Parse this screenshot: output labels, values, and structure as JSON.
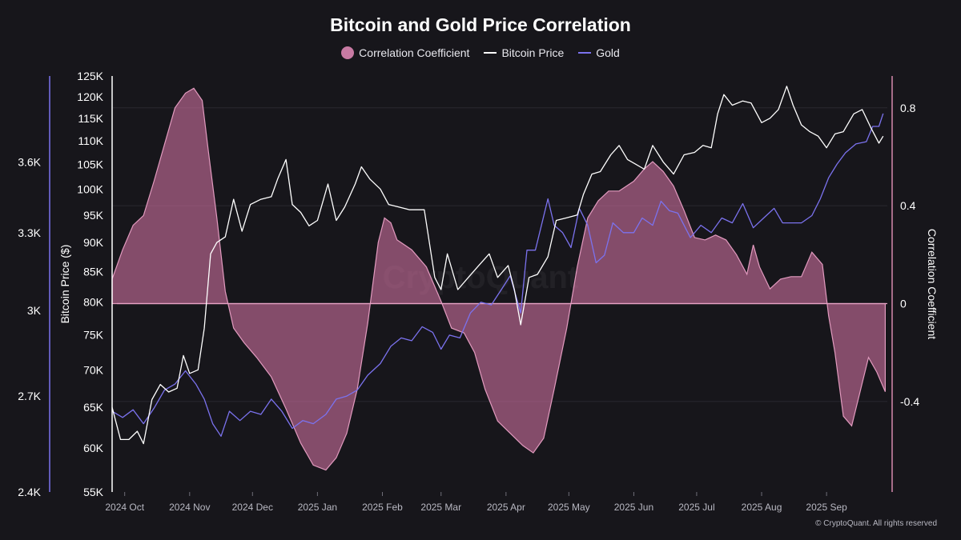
{
  "chart_data": {
    "type": "line",
    "title": "Bitcoin and Gold Price Correlation",
    "watermark": "CryptoQuant",
    "copyright": "© CryptoQuant. All rights reserved",
    "colors": {
      "background": "#17161b",
      "bitcoin": "#ffffff",
      "gold": "#7b72ee",
      "correlation": "#d58aae"
    },
    "x_ticks": [
      "2024 Oct",
      "2024 Nov",
      "2024 Dec",
      "2025 Jan",
      "2025 Feb",
      "2025 Mar",
      "2025 Apr",
      "2025 May",
      "2025 Jun",
      "2025 Jul",
      "2025 Aug",
      "2025 Sep"
    ],
    "x_range": [
      "2024-09-25",
      "2025-09-30"
    ],
    "axes": {
      "bitcoin": {
        "label": "Bitcoin Price ($)",
        "scale": "log",
        "range": [
          55000,
          125000
        ],
        "ticks": [
          "125K",
          "120K",
          "115K",
          "110K",
          "105K",
          "100K",
          "95K",
          "90K",
          "85K",
          "80K",
          "75K",
          "70K",
          "65K",
          "60K",
          "55K"
        ]
      },
      "gold": {
        "label": "",
        "scale": "log",
        "range": [
          2400,
          4000
        ],
        "ticks": [
          "3.6K",
          "3.3K",
          "3K",
          "2.7K",
          "2.4K"
        ]
      },
      "correlation": {
        "label": "Correlation Coefficient",
        "range": [
          -0.77,
          0.93
        ],
        "ticks": [
          "0.8",
          "0.4",
          "0",
          "-0.4"
        ]
      }
    },
    "grid": "horizontal",
    "legend": "top-center",
    "series": [
      {
        "name": "Correlation Coefficient",
        "type": "area",
        "points": [
          [
            "2024-09-25",
            0.1
          ],
          [
            "2024-09-30",
            0.22
          ],
          [
            "2024-10-05",
            0.32
          ],
          [
            "2024-10-10",
            0.36
          ],
          [
            "2024-10-15",
            0.5
          ],
          [
            "2024-10-20",
            0.65
          ],
          [
            "2024-10-25",
            0.8
          ],
          [
            "2024-10-30",
            0.86
          ],
          [
            "2024-11-03",
            0.88
          ],
          [
            "2024-11-07",
            0.83
          ],
          [
            "2024-11-10",
            0.62
          ],
          [
            "2024-11-14",
            0.35
          ],
          [
            "2024-11-18",
            0.05
          ],
          [
            "2024-11-22",
            -0.1
          ],
          [
            "2024-11-27",
            -0.16
          ],
          [
            "2024-12-03",
            -0.22
          ],
          [
            "2024-12-10",
            -0.3
          ],
          [
            "2024-12-17",
            -0.43
          ],
          [
            "2024-12-24",
            -0.57
          ],
          [
            "2024-12-30",
            -0.66
          ],
          [
            "2025-01-05",
            -0.68
          ],
          [
            "2025-01-10",
            -0.63
          ],
          [
            "2025-01-15",
            -0.53
          ],
          [
            "2025-01-20",
            -0.35
          ],
          [
            "2025-01-25",
            -0.08
          ],
          [
            "2025-01-30",
            0.25
          ],
          [
            "2025-02-02",
            0.35
          ],
          [
            "2025-02-05",
            0.33
          ],
          [
            "2025-02-08",
            0.26
          ],
          [
            "2025-02-15",
            0.22
          ],
          [
            "2025-02-22",
            0.15
          ],
          [
            "2025-03-01",
            0.01
          ],
          [
            "2025-03-06",
            -0.1
          ],
          [
            "2025-03-12",
            -0.12
          ],
          [
            "2025-03-17",
            -0.2
          ],
          [
            "2025-03-22",
            -0.35
          ],
          [
            "2025-03-28",
            -0.48
          ],
          [
            "2025-04-03",
            -0.53
          ],
          [
            "2025-04-09",
            -0.58
          ],
          [
            "2025-04-14",
            -0.61
          ],
          [
            "2025-04-19",
            -0.55
          ],
          [
            "2025-04-24",
            -0.35
          ],
          [
            "2025-04-30",
            -0.1
          ],
          [
            "2025-05-05",
            0.15
          ],
          [
            "2025-05-10",
            0.35
          ],
          [
            "2025-05-15",
            0.42
          ],
          [
            "2025-05-20",
            0.46
          ],
          [
            "2025-05-25",
            0.46
          ],
          [
            "2025-06-01",
            0.5
          ],
          [
            "2025-06-06",
            0.55
          ],
          [
            "2025-06-10",
            0.58
          ],
          [
            "2025-06-15",
            0.54
          ],
          [
            "2025-06-20",
            0.48
          ],
          [
            "2025-06-25",
            0.38
          ],
          [
            "2025-06-30",
            0.27
          ],
          [
            "2025-07-05",
            0.26
          ],
          [
            "2025-07-10",
            0.28
          ],
          [
            "2025-07-15",
            0.26
          ],
          [
            "2025-07-20",
            0.2
          ],
          [
            "2025-07-25",
            0.12
          ],
          [
            "2025-07-28",
            0.24
          ],
          [
            "2025-07-31",
            0.15
          ],
          [
            "2025-08-05",
            0.06
          ],
          [
            "2025-08-10",
            0.1
          ],
          [
            "2025-08-15",
            0.11
          ],
          [
            "2025-08-20",
            0.11
          ],
          [
            "2025-08-25",
            0.21
          ],
          [
            "2025-08-30",
            0.16
          ],
          [
            "2025-09-02",
            -0.05
          ],
          [
            "2025-09-05",
            -0.2
          ],
          [
            "2025-09-09",
            -0.46
          ],
          [
            "2025-09-13",
            -0.5
          ],
          [
            "2025-09-17",
            -0.36
          ],
          [
            "2025-09-21",
            -0.22
          ],
          [
            "2025-09-25",
            -0.28
          ],
          [
            "2025-09-29",
            -0.36
          ]
        ]
      },
      {
        "name": "Bitcoin Price",
        "type": "line",
        "points": [
          [
            "2024-09-25",
            65000
          ],
          [
            "2024-09-29",
            61000
          ],
          [
            "2024-10-03",
            61000
          ],
          [
            "2024-10-07",
            62000
          ],
          [
            "2024-10-10",
            60500
          ],
          [
            "2024-10-14",
            66000
          ],
          [
            "2024-10-18",
            68000
          ],
          [
            "2024-10-22",
            67000
          ],
          [
            "2024-10-26",
            67500
          ],
          [
            "2024-10-29",
            72000
          ],
          [
            "2024-11-01",
            69500
          ],
          [
            "2024-11-05",
            70000
          ],
          [
            "2024-11-08",
            76000
          ],
          [
            "2024-11-11",
            88000
          ],
          [
            "2024-11-14",
            90000
          ],
          [
            "2024-11-18",
            91000
          ],
          [
            "2024-11-22",
            98000
          ],
          [
            "2024-11-26",
            92000
          ],
          [
            "2024-11-30",
            97000
          ],
          [
            "2024-12-05",
            98000
          ],
          [
            "2024-12-10",
            98500
          ],
          [
            "2024-12-13",
            102000
          ],
          [
            "2024-12-17",
            106000
          ],
          [
            "2024-12-20",
            97000
          ],
          [
            "2024-12-24",
            95500
          ],
          [
            "2024-12-28",
            93000
          ],
          [
            "2025-01-01",
            94000
          ],
          [
            "2025-01-06",
            101000
          ],
          [
            "2025-01-10",
            94000
          ],
          [
            "2025-01-14",
            96500
          ],
          [
            "2025-01-19",
            101000
          ],
          [
            "2025-01-22",
            104500
          ],
          [
            "2025-01-26",
            102000
          ],
          [
            "2025-01-31",
            100000
          ],
          [
            "2025-02-04",
            97000
          ],
          [
            "2025-02-09",
            96500
          ],
          [
            "2025-02-14",
            96000
          ],
          [
            "2025-02-21",
            96000
          ],
          [
            "2025-02-26",
            84000
          ],
          [
            "2025-03-01",
            82000
          ],
          [
            "2025-03-04",
            88000
          ],
          [
            "2025-03-09",
            82000
          ],
          [
            "2025-03-14",
            84000
          ],
          [
            "2025-03-19",
            86000
          ],
          [
            "2025-03-24",
            88000
          ],
          [
            "2025-03-28",
            84000
          ],
          [
            "2025-04-02",
            86000
          ],
          [
            "2025-04-05",
            82000
          ],
          [
            "2025-04-08",
            76500
          ],
          [
            "2025-04-12",
            84000
          ],
          [
            "2025-04-16",
            84500
          ],
          [
            "2025-04-21",
            87500
          ],
          [
            "2025-04-25",
            94000
          ],
          [
            "2025-04-30",
            94500
          ],
          [
            "2025-05-05",
            95000
          ],
          [
            "2025-05-08",
            99000
          ],
          [
            "2025-05-12",
            103000
          ],
          [
            "2025-05-16",
            103500
          ],
          [
            "2025-05-21",
            107000
          ],
          [
            "2025-05-25",
            109000
          ],
          [
            "2025-05-29",
            106000
          ],
          [
            "2025-06-02",
            105000
          ],
          [
            "2025-06-06",
            104000
          ],
          [
            "2025-06-10",
            109000
          ],
          [
            "2025-06-15",
            105500
          ],
          [
            "2025-06-20",
            103000
          ],
          [
            "2025-06-25",
            107000
          ],
          [
            "2025-06-30",
            107500
          ],
          [
            "2025-07-04",
            109000
          ],
          [
            "2025-07-08",
            108500
          ],
          [
            "2025-07-11",
            116000
          ],
          [
            "2025-07-14",
            120500
          ],
          [
            "2025-07-18",
            118000
          ],
          [
            "2025-07-23",
            119000
          ],
          [
            "2025-07-27",
            118500
          ],
          [
            "2025-08-01",
            114000
          ],
          [
            "2025-08-05",
            115000
          ],
          [
            "2025-08-09",
            117000
          ],
          [
            "2025-08-13",
            122500
          ],
          [
            "2025-08-16",
            118000
          ],
          [
            "2025-08-20",
            113500
          ],
          [
            "2025-08-24",
            112000
          ],
          [
            "2025-08-28",
            111000
          ],
          [
            "2025-09-01",
            108500
          ],
          [
            "2025-09-05",
            111500
          ],
          [
            "2025-09-09",
            112000
          ],
          [
            "2025-09-14",
            116000
          ],
          [
            "2025-09-18",
            117000
          ],
          [
            "2025-09-22",
            113000
          ],
          [
            "2025-09-26",
            109500
          ],
          [
            "2025-09-28",
            111000
          ]
        ]
      },
      {
        "name": "Gold",
        "type": "line",
        "points": [
          [
            "2024-09-25",
            2650
          ],
          [
            "2024-09-30",
            2630
          ],
          [
            "2024-10-05",
            2655
          ],
          [
            "2024-10-10",
            2610
          ],
          [
            "2024-10-15",
            2660
          ],
          [
            "2024-10-20",
            2720
          ],
          [
            "2024-10-25",
            2740
          ],
          [
            "2024-10-30",
            2785
          ],
          [
            "2024-11-04",
            2740
          ],
          [
            "2024-11-08",
            2690
          ],
          [
            "2024-11-12",
            2610
          ],
          [
            "2024-11-16",
            2570
          ],
          [
            "2024-11-20",
            2650
          ],
          [
            "2024-11-25",
            2620
          ],
          [
            "2024-11-30",
            2650
          ],
          [
            "2024-12-05",
            2640
          ],
          [
            "2024-12-10",
            2690
          ],
          [
            "2024-12-15",
            2650
          ],
          [
            "2024-12-20",
            2595
          ],
          [
            "2024-12-25",
            2620
          ],
          [
            "2024-12-30",
            2610
          ],
          [
            "2025-01-05",
            2640
          ],
          [
            "2025-01-10",
            2690
          ],
          [
            "2025-01-15",
            2700
          ],
          [
            "2025-01-20",
            2720
          ],
          [
            "2025-01-25",
            2770
          ],
          [
            "2025-01-31",
            2810
          ],
          [
            "2025-02-05",
            2870
          ],
          [
            "2025-02-10",
            2900
          ],
          [
            "2025-02-15",
            2890
          ],
          [
            "2025-02-20",
            2940
          ],
          [
            "2025-02-25",
            2920
          ],
          [
            "2025-03-01",
            2860
          ],
          [
            "2025-03-05",
            2910
          ],
          [
            "2025-03-10",
            2900
          ],
          [
            "2025-03-15",
            2990
          ],
          [
            "2025-03-20",
            3030
          ],
          [
            "2025-03-25",
            3020
          ],
          [
            "2025-03-30",
            3080
          ],
          [
            "2025-04-03",
            3130
          ],
          [
            "2025-04-08",
            2990
          ],
          [
            "2025-04-11",
            3230
          ],
          [
            "2025-04-15",
            3230
          ],
          [
            "2025-04-21",
            3440
          ],
          [
            "2025-04-24",
            3330
          ],
          [
            "2025-04-28",
            3300
          ],
          [
            "2025-05-02",
            3240
          ],
          [
            "2025-05-06",
            3400
          ],
          [
            "2025-05-10",
            3330
          ],
          [
            "2025-05-14",
            3180
          ],
          [
            "2025-05-18",
            3210
          ],
          [
            "2025-05-22",
            3340
          ],
          [
            "2025-05-27",
            3300
          ],
          [
            "2025-06-01",
            3300
          ],
          [
            "2025-06-05",
            3360
          ],
          [
            "2025-06-10",
            3330
          ],
          [
            "2025-06-14",
            3430
          ],
          [
            "2025-06-18",
            3390
          ],
          [
            "2025-06-22",
            3380
          ],
          [
            "2025-06-28",
            3280
          ],
          [
            "2025-07-03",
            3330
          ],
          [
            "2025-07-08",
            3300
          ],
          [
            "2025-07-13",
            3360
          ],
          [
            "2025-07-18",
            3340
          ],
          [
            "2025-07-23",
            3420
          ],
          [
            "2025-07-28",
            3320
          ],
          [
            "2025-08-02",
            3360
          ],
          [
            "2025-08-07",
            3400
          ],
          [
            "2025-08-11",
            3340
          ],
          [
            "2025-08-15",
            3340
          ],
          [
            "2025-08-20",
            3340
          ],
          [
            "2025-08-25",
            3370
          ],
          [
            "2025-08-29",
            3440
          ],
          [
            "2025-09-02",
            3530
          ],
          [
            "2025-09-06",
            3590
          ],
          [
            "2025-09-10",
            3640
          ],
          [
            "2025-09-15",
            3680
          ],
          [
            "2025-09-20",
            3690
          ],
          [
            "2025-09-23",
            3760
          ],
          [
            "2025-09-26",
            3760
          ],
          [
            "2025-09-28",
            3820
          ]
        ]
      }
    ]
  }
}
